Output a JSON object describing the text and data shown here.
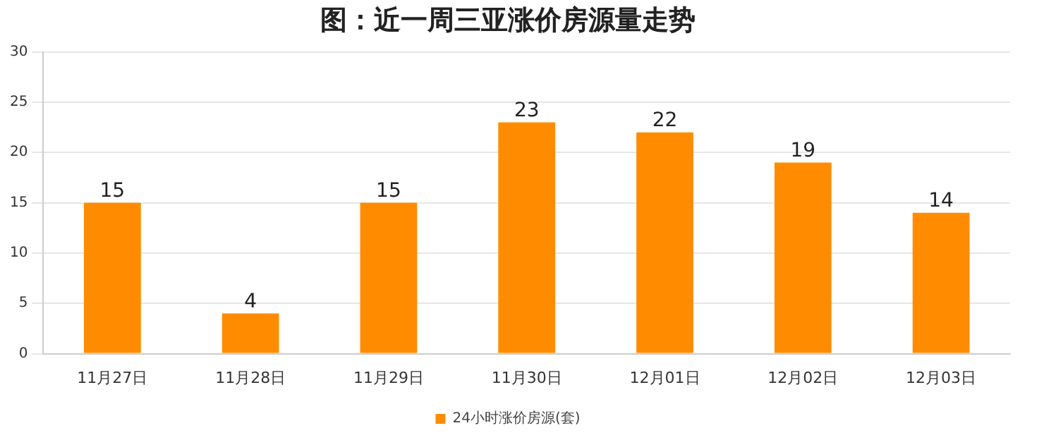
{
  "chart_data": {
    "type": "bar",
    "title": "图：近一周三亚涨价房源量走势",
    "categories": [
      "11月27日",
      "11月28日",
      "11月29日",
      "11月30日",
      "12月01日",
      "12月02日",
      "12月03日"
    ],
    "series": [
      {
        "name": "24小时涨价房源(套)",
        "color": "#ff8c00",
        "values": [
          15,
          4,
          15,
          23,
          22,
          19,
          14
        ]
      }
    ],
    "ylim": [
      0,
      30
    ],
    "yticks": [
      0,
      5,
      10,
      15,
      20,
      25,
      30
    ],
    "grid": "y",
    "legend": "bottom",
    "data_labels": true
  }
}
